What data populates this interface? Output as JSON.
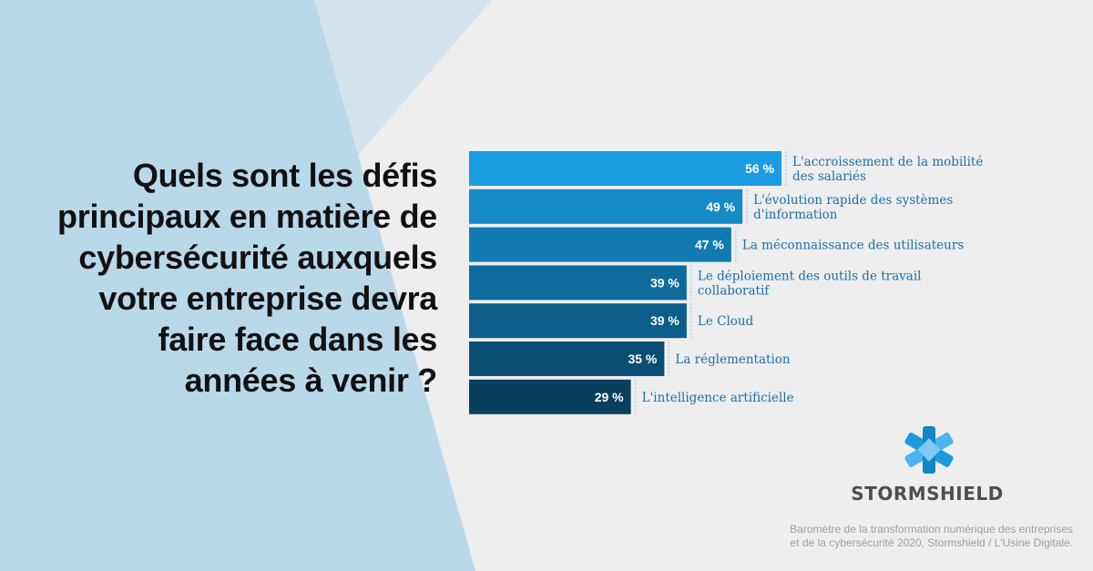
{
  "question": "Quels sont les défis principaux en matière de cybersécurité auxquels votre entreprise devra faire face dans les années à venir ?",
  "brand": "STORMSHIELD",
  "source": {
    "line1": "Baromètre de la transformation numérique des entreprises",
    "line2": "et de la cybersécurité 2020, Stormshield / L'Usine Digitale."
  },
  "colors": {
    "background": "#eeeeef",
    "panel_light": "#d1e4ef",
    "panel_medium": "#b9d8ea",
    "label_text": "#1c6fa8",
    "brand_text": "#4b4f55",
    "logo_blue": "#1e9be0"
  },
  "chart_data": {
    "type": "bar",
    "orientation": "horizontal",
    "unit": "%",
    "categories": [
      "L'accroissement de la mobilité des salariés",
      "L'évolution rapide des systèmes d'information",
      "La méconnaissance des utilisateurs",
      "Le déploiement des outils de travail collaboratif",
      "Le Cloud",
      "La réglementation",
      "L'intelligence artificielle"
    ],
    "category_lines": [
      [
        "L'accroissement de la mobilité",
        "des salariés"
      ],
      [
        "L'évolution rapide des systèmes",
        "d'information"
      ],
      [
        "La méconnaissance des utilisateurs"
      ],
      [
        "Le déploiement des outils de travail",
        "collaboratif"
      ],
      [
        "Le Cloud"
      ],
      [
        "La réglementation"
      ],
      [
        "L'intelligence artificielle"
      ]
    ],
    "values": [
      56,
      49,
      47,
      39,
      39,
      35,
      29
    ],
    "value_labels": [
      "56 %",
      "49 %",
      "47 %",
      "39 %",
      "39 %",
      "35 %",
      "29 %"
    ],
    "bar_colors": [
      "#1b9ce0",
      "#168bc6",
      "#117bb1",
      "#0f6b9b",
      "#0c5d88",
      "#0a4f73",
      "#083f5d"
    ],
    "xlim": [
      0,
      56
    ]
  }
}
